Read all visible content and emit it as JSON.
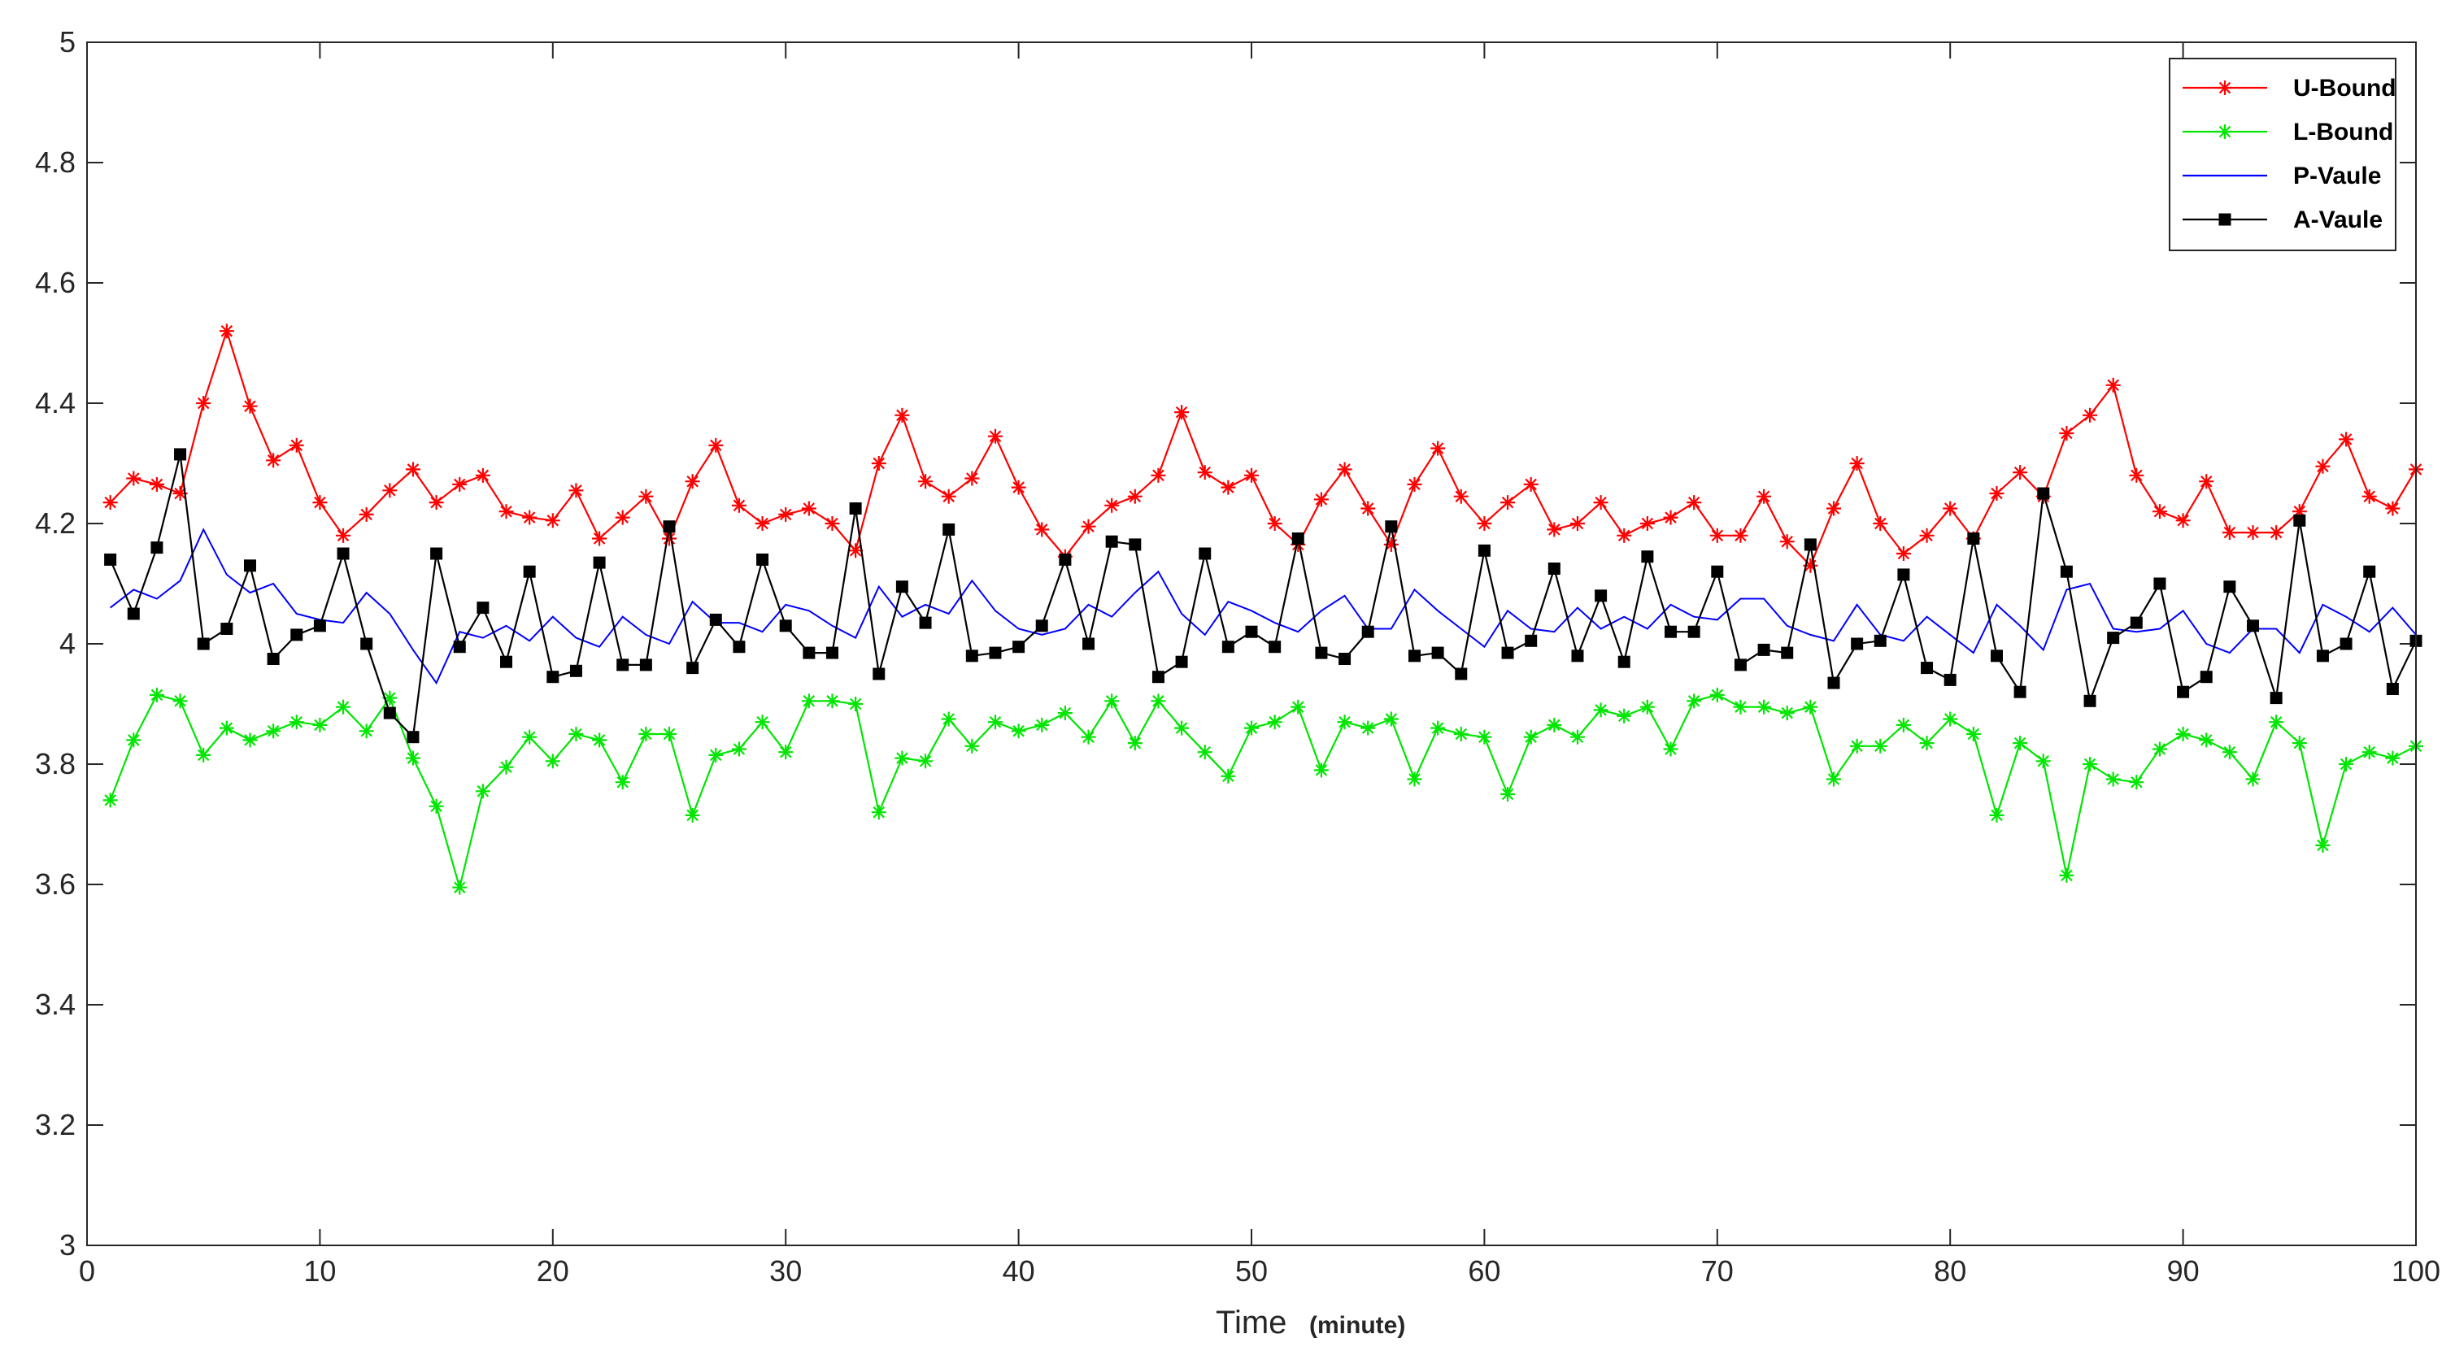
{
  "chart_data": {
    "type": "line",
    "title": "",
    "xlabel": "Time",
    "xlabel_unit": "(minute)",
    "ylabel": "",
    "xlim": [
      0,
      100
    ],
    "ylim": [
      3,
      5
    ],
    "xticks": [
      0,
      10,
      20,
      30,
      40,
      50,
      60,
      70,
      80,
      90,
      100
    ],
    "yticks": [
      3,
      3.2,
      3.4,
      3.6,
      3.8,
      4,
      4.2,
      4.4,
      4.6,
      4.8,
      5
    ],
    "grid": false,
    "legend": "top-right",
    "x": [
      1,
      2,
      3,
      4,
      5,
      6,
      7,
      8,
      9,
      10,
      11,
      12,
      13,
      14,
      15,
      16,
      17,
      18,
      19,
      20,
      21,
      22,
      23,
      24,
      25,
      26,
      27,
      28,
      29,
      30,
      31,
      32,
      33,
      34,
      35,
      36,
      37,
      38,
      39,
      40,
      41,
      42,
      43,
      44,
      45,
      46,
      47,
      48,
      49,
      50,
      51,
      52,
      53,
      54,
      55,
      56,
      57,
      58,
      59,
      60,
      61,
      62,
      63,
      64,
      65,
      66,
      67,
      68,
      69,
      70,
      71,
      72,
      73,
      74,
      75,
      76,
      77,
      78,
      79,
      80,
      81,
      82,
      83,
      84,
      85,
      86,
      87,
      88,
      89,
      90,
      91,
      92,
      93,
      94,
      95,
      96,
      97,
      98,
      99,
      100
    ],
    "series": [
      {
        "name": "U-Bound",
        "color": "#ff0000",
        "marker": "asterisk",
        "values": [
          4.235,
          4.275,
          4.265,
          4.25,
          4.4,
          4.52,
          4.395,
          4.305,
          4.33,
          4.235,
          4.18,
          4.215,
          4.255,
          4.29,
          4.235,
          4.265,
          4.28,
          4.22,
          4.21,
          4.205,
          4.255,
          4.175,
          4.21,
          4.245,
          4.175,
          4.27,
          4.33,
          4.23,
          4.2,
          4.215,
          4.225,
          4.2,
          4.155,
          4.3,
          4.38,
          4.27,
          4.245,
          4.275,
          4.345,
          4.26,
          4.19,
          4.145,
          4.195,
          4.23,
          4.245,
          4.28,
          4.385,
          4.285,
          4.26,
          4.28,
          4.2,
          4.165,
          4.24,
          4.29,
          4.225,
          4.165,
          4.265,
          4.325,
          4.245,
          4.2,
          4.235,
          4.265,
          4.19,
          4.2,
          4.235,
          4.18,
          4.2,
          4.21,
          4.235,
          4.18,
          4.18,
          4.245,
          4.17,
          4.13,
          4.225,
          4.3,
          4.2,
          4.15,
          4.18,
          4.225,
          4.175,
          4.25,
          4.285,
          4.245,
          4.35,
          4.38,
          4.43,
          4.28,
          4.22,
          4.205,
          4.27,
          4.185,
          4.185,
          4.185,
          4.22,
          4.295,
          4.34,
          4.245,
          4.225,
          4.29
        ]
      },
      {
        "name": "L-Bound",
        "color": "#00e600",
        "marker": "asterisk",
        "values": [
          3.74,
          3.84,
          3.915,
          3.905,
          3.815,
          3.86,
          3.84,
          3.855,
          3.87,
          3.865,
          3.895,
          3.855,
          3.91,
          3.81,
          3.73,
          3.595,
          3.755,
          3.795,
          3.845,
          3.805,
          3.85,
          3.84,
          3.77,
          3.85,
          3.85,
          3.715,
          3.815,
          3.825,
          3.87,
          3.82,
          3.905,
          3.905,
          3.9,
          3.72,
          3.81,
          3.805,
          3.875,
          3.83,
          3.87,
          3.855,
          3.865,
          3.885,
          3.845,
          3.905,
          3.835,
          3.905,
          3.86,
          3.82,
          3.78,
          3.86,
          3.87,
          3.895,
          3.79,
          3.87,
          3.86,
          3.875,
          3.775,
          3.86,
          3.85,
          3.845,
          3.75,
          3.845,
          3.865,
          3.845,
          3.89,
          3.88,
          3.895,
          3.825,
          3.905,
          3.915,
          3.895,
          3.895,
          3.885,
          3.895,
          3.775,
          3.83,
          3.83,
          3.865,
          3.835,
          3.875,
          3.85,
          3.715,
          3.835,
          3.805,
          3.615,
          3.8,
          3.775,
          3.77,
          3.825,
          3.85,
          3.84,
          3.82,
          3.775,
          3.87,
          3.835,
          3.665,
          3.8,
          3.82,
          3.81,
          3.83
        ]
      },
      {
        "name": "P-Vaule",
        "color": "#0000ff",
        "marker": "none",
        "values": [
          4.06,
          4.09,
          4.075,
          4.105,
          4.19,
          4.115,
          4.085,
          4.1,
          4.05,
          4.04,
          4.035,
          4.085,
          4.05,
          3.99,
          3.935,
          4.02,
          4.01,
          4.03,
          4.005,
          4.045,
          4.01,
          3.995,
          4.045,
          4.015,
          4.0,
          4.07,
          4.035,
          4.035,
          4.02,
          4.065,
          4.055,
          4.03,
          4.01,
          4.095,
          4.045,
          4.065,
          4.05,
          4.105,
          4.055,
          4.025,
          4.015,
          4.025,
          4.065,
          4.045,
          4.085,
          4.12,
          4.05,
          4.015,
          4.07,
          4.055,
          4.035,
          4.02,
          4.055,
          4.08,
          4.025,
          4.025,
          4.09,
          4.055,
          4.025,
          3.995,
          4.055,
          4.025,
          4.02,
          4.06,
          4.025,
          4.045,
          4.025,
          4.065,
          4.045,
          4.04,
          4.075,
          4.075,
          4.03,
          4.015,
          4.005,
          4.065,
          4.015,
          4.005,
          4.045,
          4.015,
          3.985,
          4.065,
          4.03,
          3.99,
          4.09,
          4.1,
          4.025,
          4.02,
          4.025,
          4.055,
          4.0,
          3.985,
          4.025,
          4.025,
          3.985,
          4.065,
          4.045,
          4.02,
          4.06,
          4.015
        ]
      },
      {
        "name": "A-Vaule",
        "color": "#000000",
        "marker": "square",
        "values": [
          4.14,
          4.05,
          4.16,
          4.315,
          4.0,
          4.025,
          4.13,
          3.975,
          4.015,
          4.03,
          4.15,
          4.0,
          3.885,
          3.845,
          4.15,
          3.995,
          4.06,
          3.97,
          4.12,
          3.945,
          3.955,
          4.135,
          3.965,
          3.965,
          4.195,
          3.96,
          4.04,
          3.995,
          4.14,
          4.03,
          3.985,
          3.985,
          4.225,
          3.95,
          4.095,
          4.035,
          4.19,
          3.98,
          3.985,
          3.995,
          4.03,
          4.14,
          4.0,
          4.17,
          4.165,
          3.945,
          3.97,
          4.15,
          3.995,
          4.02,
          3.995,
          4.175,
          3.985,
          3.975,
          4.02,
          4.195,
          3.98,
          3.985,
          3.95,
          4.155,
          3.985,
          4.005,
          4.125,
          3.98,
          4.08,
          3.97,
          4.145,
          4.02,
          4.02,
          4.12,
          3.965,
          3.99,
          3.985,
          4.165,
          3.935,
          4.0,
          4.005,
          4.115,
          3.96,
          3.94,
          4.175,
          3.98,
          3.92,
          4.25,
          4.12,
          3.905,
          4.01,
          4.035,
          4.1,
          3.92,
          3.945,
          4.095,
          4.03,
          3.91,
          4.205,
          3.98,
          4.0,
          4.12,
          3.925,
          4.005
        ]
      }
    ]
  }
}
